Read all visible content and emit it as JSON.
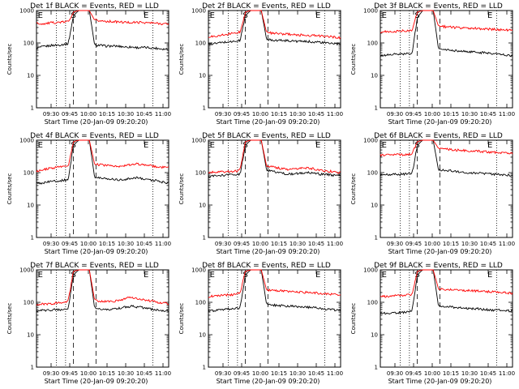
{
  "chart_data": [
    {
      "type": "line",
      "title": "Det 1f BLACK = Events, RED = LLD",
      "xlabel": "Start Time (20-Jan-09 09:20:20)",
      "ylabel": "Counts/sec",
      "y_scale": "log",
      "ylim": [
        1,
        1000
      ],
      "x_tick_labels": [
        "09:30",
        "09:45",
        "10:00",
        "10:15",
        "10:30",
        "10:45",
        "11:00"
      ],
      "y_tick_labels": [
        "1",
        "10",
        "100",
        "1000"
      ],
      "markers": [
        "E",
        "S",
        "E"
      ],
      "series": [
        {
          "name": "BLACK = Events",
          "color": "#000000",
          "values": [
            70,
            75,
            80,
            85,
            85,
            90,
            95,
            700,
            1000,
            1000,
            1000,
            85,
            85,
            80,
            80,
            80,
            78,
            75,
            75,
            72,
            72,
            72,
            70,
            68,
            65,
            65
          ]
        },
        {
          "name": "RED = LLD",
          "color": "#ff0000",
          "values": [
            400,
            390,
            400,
            420,
            430,
            440,
            460,
            900,
            1000,
            1000,
            1000,
            500,
            480,
            470,
            460,
            450,
            440,
            430,
            430,
            430,
            430,
            420,
            410,
            400,
            390,
            390
          ]
        }
      ]
    },
    {
      "type": "line",
      "title": "Det 2f BLACK = Events, RED = LLD",
      "xlabel": "Start Time (20-Jan-09 09:20:20)",
      "ylabel": "Counts/sec",
      "y_scale": "log",
      "ylim": [
        1,
        1000
      ],
      "x_tick_labels": [
        "09:30",
        "09:45",
        "10:00",
        "10:15",
        "10:30",
        "10:45",
        "11:00"
      ],
      "y_tick_labels": [
        "1",
        "10",
        "100",
        "1000"
      ],
      "markers": [
        "E",
        "S",
        "E"
      ],
      "series": [
        {
          "name": "BLACK = Events",
          "color": "#000000",
          "values": [
            90,
            95,
            100,
            105,
            110,
            110,
            120,
            700,
            1000,
            1000,
            1000,
            130,
            125,
            120,
            120,
            118,
            115,
            112,
            110,
            110,
            108,
            105,
            100,
            98,
            95,
            90
          ]
        },
        {
          "name": "RED = LLD",
          "color": "#ff0000",
          "values": [
            150,
            160,
            170,
            180,
            190,
            200,
            220,
            900,
            1000,
            1000,
            1000,
            210,
            200,
            195,
            190,
            185,
            180,
            175,
            175,
            170,
            168,
            165,
            160,
            155,
            150,
            145
          ]
        }
      ]
    },
    {
      "type": "line",
      "title": "Det 3f BLACK = Events, RED = LLD",
      "xlabel": "Start Time (20-Jan-09 09:20:20)",
      "ylabel": "Counts/sec",
      "y_scale": "log",
      "ylim": [
        1,
        1000
      ],
      "x_tick_labels": [
        "09:30",
        "09:45",
        "10:00",
        "10:15",
        "10:30",
        "10:45",
        "11:00"
      ],
      "y_tick_labels": [
        "1",
        "10",
        "100",
        "1000"
      ],
      "markers": [
        "E",
        "S",
        "E"
      ],
      "series": [
        {
          "name": "BLACK = Events",
          "color": "#000000",
          "values": [
            40,
            42,
            44,
            45,
            45,
            46,
            48,
            600,
            1000,
            1000,
            1000,
            65,
            62,
            60,
            58,
            56,
            55,
            53,
            52,
            50,
            50,
            48,
            46,
            44,
            42,
            40
          ]
        },
        {
          "name": "RED = LLD",
          "color": "#ff0000",
          "values": [
            220,
            220,
            225,
            230,
            235,
            240,
            250,
            900,
            1000,
            1000,
            1000,
            330,
            320,
            310,
            300,
            295,
            290,
            285,
            280,
            275,
            270,
            265,
            260,
            255,
            250,
            245
          ]
        }
      ]
    },
    {
      "type": "line",
      "title": "Det 4f BLACK = Events, RED = LLD",
      "xlabel": "Start Time (20-Jan-09 09:20:20)",
      "ylabel": "Counts/sec",
      "y_scale": "log",
      "ylim": [
        1,
        1000
      ],
      "x_tick_labels": [
        "09:30",
        "09:45",
        "10:00",
        "10:15",
        "10:30",
        "10:45",
        "11:00"
      ],
      "y_tick_labels": [
        "1",
        "10",
        "100",
        "1000"
      ],
      "markers": [
        "E",
        "S",
        "E"
      ],
      "series": [
        {
          "name": "BLACK = Events",
          "color": "#000000",
          "values": [
            45,
            48,
            50,
            55,
            55,
            58,
            60,
            700,
            1000,
            1000,
            1000,
            70,
            68,
            66,
            64,
            62,
            60,
            62,
            68,
            70,
            66,
            62,
            58,
            55,
            50,
            48
          ]
        },
        {
          "name": "RED = LLD",
          "color": "#ff0000",
          "values": [
            110,
            120,
            130,
            140,
            145,
            150,
            160,
            900,
            1000,
            1000,
            1000,
            180,
            175,
            170,
            165,
            160,
            158,
            165,
            180,
            185,
            175,
            165,
            158,
            150,
            145,
            140
          ]
        }
      ]
    },
    {
      "type": "line",
      "title": "Det 5f BLACK = Events, RED = LLD",
      "xlabel": "Start Time (20-Jan-09 09:20:20)",
      "ylabel": "Counts/sec",
      "y_scale": "log",
      "ylim": [
        1,
        1000
      ],
      "x_tick_labels": [
        "09:30",
        "09:45",
        "10:00",
        "10:15",
        "10:30",
        "10:45",
        "11:00"
      ],
      "y_tick_labels": [
        "1",
        "10",
        "100",
        "1000"
      ],
      "markers": [
        "E",
        "S",
        "E"
      ],
      "series": [
        {
          "name": "BLACK = Events",
          "color": "#000000",
          "values": [
            75,
            78,
            80,
            82,
            85,
            88,
            90,
            700,
            1000,
            1000,
            1000,
            120,
            110,
            100,
            95,
            90,
            92,
            95,
            98,
            100,
            95,
            90,
            88,
            85,
            82,
            80
          ]
        },
        {
          "name": "RED = LLD",
          "color": "#ff0000",
          "values": [
            100,
            102,
            104,
            105,
            108,
            110,
            120,
            900,
            1000,
            1000,
            1000,
            160,
            150,
            140,
            130,
            125,
            130,
            135,
            140,
            138,
            130,
            120,
            115,
            110,
            105,
            100
          ]
        }
      ]
    },
    {
      "type": "line",
      "title": "Det 6f BLACK = Events, RED = LLD",
      "xlabel": "Start Time (20-Jan-09 09:20:20)",
      "ylabel": "Counts/sec",
      "y_scale": "log",
      "ylim": [
        1,
        1000
      ],
      "x_tick_labels": [
        "09:30",
        "09:45",
        "10:00",
        "10:15",
        "10:30",
        "10:45",
        "11:00"
      ],
      "y_tick_labels": [
        "1",
        "10",
        "100",
        "1000"
      ],
      "markers": [
        "E",
        "S",
        "E"
      ],
      "series": [
        {
          "name": "BLACK = Events",
          "color": "#000000",
          "values": [
            85,
            85,
            86,
            88,
            88,
            90,
            92,
            700,
            1000,
            1000,
            1000,
            120,
            118,
            115,
            110,
            105,
            100,
            98,
            95,
            95,
            92,
            90,
            88,
            86,
            84,
            82
          ]
        },
        {
          "name": "RED = LLD",
          "color": "#ff0000",
          "values": [
            350,
            350,
            355,
            360,
            360,
            365,
            380,
            900,
            1000,
            1000,
            1000,
            560,
            540,
            520,
            500,
            490,
            480,
            470,
            460,
            450,
            440,
            430,
            420,
            410,
            400,
            390
          ]
        }
      ]
    },
    {
      "type": "line",
      "title": "Det 7f BLACK = Events, RED = LLD",
      "xlabel": "Start Time (20-Jan-09 09:20:20)",
      "ylabel": "Counts/sec",
      "y_scale": "log",
      "ylim": [
        1,
        1000
      ],
      "x_tick_labels": [
        "09:30",
        "09:45",
        "10:00",
        "10:15",
        "10:30",
        "10:45",
        "11:00"
      ],
      "y_tick_labels": [
        "1",
        "10",
        "100",
        "1000"
      ],
      "markers": [
        "E",
        "S",
        "E"
      ],
      "series": [
        {
          "name": "BLACK = Events",
          "color": "#000000",
          "values": [
            55,
            56,
            57,
            58,
            60,
            60,
            62,
            700,
            1000,
            1000,
            1000,
            65,
            64,
            62,
            60,
            62,
            66,
            72,
            75,
            72,
            68,
            64,
            60,
            57,
            55,
            54
          ]
        },
        {
          "name": "RED = LLD",
          "color": "#ff0000",
          "values": [
            85,
            88,
            90,
            92,
            95,
            100,
            110,
            900,
            1000,
            1000,
            1000,
            115,
            110,
            108,
            105,
            110,
            120,
            135,
            140,
            135,
            125,
            115,
            108,
            100,
            95,
            90
          ]
        }
      ]
    },
    {
      "type": "line",
      "title": "Det 8f BLACK = Events, RED = LLD",
      "xlabel": "Start Time (20-Jan-09 09:20:20)",
      "ylabel": "Counts/sec",
      "y_scale": "log",
      "ylim": [
        1,
        1000
      ],
      "x_tick_labels": [
        "09:30",
        "09:45",
        "10:00",
        "10:15",
        "10:30",
        "10:45",
        "11:00"
      ],
      "y_tick_labels": [
        "1",
        "10",
        "100",
        "1000"
      ],
      "markers": [
        "E",
        "S",
        "E"
      ],
      "series": [
        {
          "name": "BLACK = Events",
          "color": "#000000",
          "values": [
            55,
            56,
            58,
            60,
            62,
            65,
            68,
            700,
            1000,
            1000,
            1000,
            85,
            82,
            80,
            78,
            76,
            75,
            74,
            72,
            70,
            68,
            65,
            62,
            60,
            58,
            55
          ]
        },
        {
          "name": "RED = LLD",
          "color": "#ff0000",
          "values": [
            150,
            155,
            160,
            165,
            170,
            175,
            190,
            900,
            1000,
            1000,
            1000,
            240,
            235,
            230,
            225,
            220,
            215,
            210,
            205,
            200,
            195,
            190,
            185,
            180,
            175,
            170
          ]
        }
      ]
    },
    {
      "type": "line",
      "title": "Det 9f BLACK = Events, RED = LLD",
      "xlabel": "Start Time (20-Jan-09 09:20:20)",
      "ylabel": "Counts/sec",
      "y_scale": "log",
      "ylim": [
        1,
        1000
      ],
      "x_tick_labels": [
        "09:30",
        "09:45",
        "10:00",
        "10:15",
        "10:30",
        "10:45",
        "11:00"
      ],
      "y_tick_labels": [
        "1",
        "10",
        "100",
        "1000"
      ],
      "markers": [
        "E",
        "S",
        "E"
      ],
      "series": [
        {
          "name": "BLACK = Events",
          "color": "#000000",
          "values": [
            45,
            46,
            47,
            48,
            48,
            50,
            52,
            700,
            1000,
            1000,
            1000,
            75,
            73,
            72,
            70,
            68,
            66,
            65,
            64,
            62,
            60,
            58,
            57,
            56,
            55,
            54
          ]
        },
        {
          "name": "RED = LLD",
          "color": "#ff0000",
          "values": [
            150,
            152,
            155,
            158,
            160,
            165,
            175,
            900,
            1000,
            1000,
            1000,
            260,
            255,
            250,
            245,
            240,
            235,
            230,
            225,
            220,
            215,
            210,
            205,
            200,
            195,
            190
          ]
        }
      ]
    }
  ]
}
